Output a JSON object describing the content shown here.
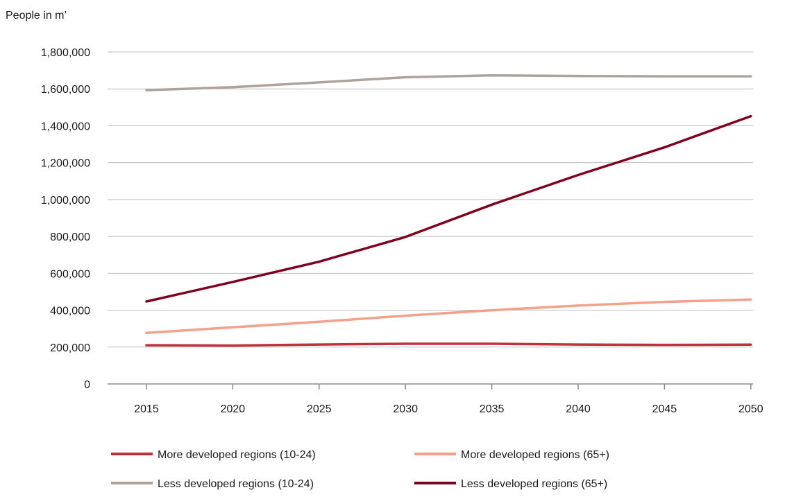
{
  "chart_data": {
    "type": "line",
    "title": "",
    "xlabel": "",
    "ylabel": "People in m’",
    "x": [
      "2015",
      "2020",
      "2025",
      "2030",
      "2035",
      "2040",
      "2045",
      "2050"
    ],
    "ylim": [
      0,
      1800000
    ],
    "yticks": [
      "0",
      "200,000",
      "400,000",
      "600,000",
      "800,000",
      "1,000,000",
      "1,200,000",
      "1,400,000",
      "1,600,000",
      "1,800,000"
    ],
    "grid": true,
    "legend_position": "bottom",
    "series": [
      {
        "name": "More developed regions (10-24)",
        "color": "#c0313d",
        "values": [
          210000,
          208000,
          214000,
          218000,
          218000,
          214000,
          212000,
          213000
        ]
      },
      {
        "name": "More developed regions (65+)",
        "color": "#f4a18a",
        "values": [
          277000,
          307000,
          337000,
          370000,
          400000,
          425000,
          445000,
          458000
        ]
      },
      {
        "name": "Less developed regions (10-24)",
        "color": "#aea29a",
        "values": [
          1593000,
          1609000,
          1635000,
          1663000,
          1673000,
          1670000,
          1668000,
          1668000
        ]
      },
      {
        "name": "Less developed regions (65+)",
        "color": "#800020",
        "values": [
          447000,
          553000,
          663000,
          797000,
          972000,
          1133000,
          1283000,
          1452000
        ]
      }
    ]
  }
}
